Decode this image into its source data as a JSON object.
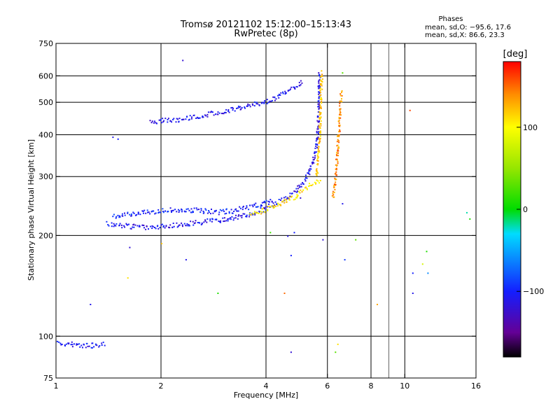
{
  "chart_data": {
    "type": "scatter",
    "title": "Tromsø 20121102 15:12:00–15:13:43",
    "subtitle": "RwPretec (8p)",
    "phases_header": "Phases",
    "phases_O": "mean, sd,O: −95.6, 17.6",
    "phases_X": "mean, sd,X:  86.6, 23.3",
    "xlabel": "Frequency [MHz]",
    "ylabel": "Stationary phase Virtual Height [km]",
    "x_scale": "log",
    "y_scale": "log",
    "xlim": [
      1,
      16
    ],
    "ylim": [
      75,
      750
    ],
    "x_ticks": [
      1,
      2,
      4,
      6,
      8,
      10,
      16
    ],
    "x_tick_labels": [
      "1",
      "2",
      "4",
      "6",
      "8",
      "10",
      "16"
    ],
    "x_grid": [
      2,
      4,
      6,
      8,
      10
    ],
    "x_minor_grid": [
      9
    ],
    "y_ticks": [
      75,
      100,
      200,
      300,
      400,
      500,
      600,
      750
    ],
    "y_tick_labels": [
      "75",
      "100",
      "200",
      "300",
      "400",
      "500",
      "600",
      "750"
    ],
    "y_grid": [
      100,
      200,
      300,
      400,
      500,
      600
    ],
    "grid": true,
    "colorbar": {
      "label": "[deg]",
      "range": [
        -180,
        180
      ],
      "ticks": [
        100,
        0,
        -100
      ],
      "tick_labels": [
        "100",
        "0",
        "−100"
      ],
      "colormap": "rainbow"
    },
    "traces": [
      {
        "name": "",
        "phase": -105,
        "points": [
          [
            1.0,
            96
          ],
          [
            1.05,
            95.5
          ],
          [
            1.1,
            95
          ],
          [
            1.15,
            94.5
          ],
          [
            1.2,
            94.2
          ],
          [
            1.25,
            94
          ],
          [
            1.3,
            94.3
          ],
          [
            1.35,
            94.8
          ],
          [
            1.38,
            95
          ]
        ]
      },
      {
        "name": "",
        "phase": -110,
        "points": [
          [
            1.4,
            218
          ],
          [
            1.45,
            217
          ],
          [
            1.5,
            216
          ],
          [
            1.6,
            214
          ],
          [
            1.7,
            213
          ],
          [
            1.8,
            213
          ],
          [
            2.0,
            214
          ],
          [
            2.2,
            216
          ],
          [
            2.5,
            219
          ],
          [
            2.8,
            222
          ],
          [
            3.0,
            224
          ],
          [
            3.3,
            228
          ],
          [
            3.6,
            233
          ],
          [
            3.9,
            240
          ],
          [
            4.2,
            248
          ],
          [
            4.5,
            258
          ],
          [
            4.8,
            270
          ],
          [
            5.0,
            283
          ],
          [
            5.2,
            300
          ],
          [
            5.4,
            325
          ],
          [
            5.5,
            350
          ],
          [
            5.58,
            380
          ],
          [
            5.62,
            420
          ],
          [
            5.64,
            470
          ],
          [
            5.65,
            520
          ],
          [
            5.66,
            570
          ],
          [
            5.68,
            620
          ]
        ]
      },
      {
        "name": "",
        "phase": -100,
        "points": [
          [
            1.45,
            228
          ],
          [
            1.6,
            232
          ],
          [
            1.8,
            236
          ],
          [
            2.0,
            238
          ],
          [
            2.3,
            240
          ],
          [
            2.6,
            238
          ],
          [
            2.9,
            236
          ],
          [
            3.2,
            238
          ],
          [
            3.5,
            243
          ],
          [
            3.9,
            250
          ],
          [
            4.2,
            257
          ]
        ]
      },
      {
        "name": "",
        "phase": -110,
        "points": [
          [
            1.85,
            440
          ],
          [
            2.0,
            442
          ],
          [
            2.2,
            445
          ],
          [
            2.5,
            455
          ],
          [
            2.8,
            465
          ],
          [
            3.1,
            475
          ],
          [
            3.4,
            485
          ],
          [
            3.7,
            495
          ],
          [
            4.0,
            505
          ],
          [
            4.3,
            520
          ],
          [
            4.6,
            545
          ],
          [
            4.9,
            565
          ],
          [
            5.1,
            580
          ]
        ]
      },
      {
        "name": "",
        "phase": 110,
        "points": [
          [
            3.6,
            232
          ],
          [
            3.9,
            238
          ],
          [
            4.2,
            245
          ],
          [
            4.5,
            253
          ],
          [
            4.8,
            262
          ],
          [
            5.0,
            270
          ],
          [
            5.2,
            278
          ],
          [
            5.4,
            285
          ],
          [
            5.6,
            290
          ],
          [
            5.7,
            293
          ]
        ]
      },
      {
        "name": "",
        "phase": 120,
        "points": [
          [
            5.55,
            300
          ],
          [
            5.6,
            330
          ],
          [
            5.65,
            370
          ],
          [
            5.68,
            420
          ],
          [
            5.7,
            470
          ],
          [
            5.72,
            520
          ],
          [
            5.74,
            570
          ],
          [
            5.76,
            620
          ]
        ]
      },
      {
        "name": "",
        "phase": 140,
        "points": [
          [
            6.2,
            260
          ],
          [
            6.3,
            290
          ],
          [
            6.35,
            330
          ],
          [
            6.4,
            370
          ],
          [
            6.45,
            420
          ],
          [
            6.5,
            480
          ],
          [
            6.55,
            540
          ]
        ]
      }
    ],
    "outliers": [
      [
        2.3,
        670,
        -120
      ],
      [
        6.6,
        615,
        30
      ],
      [
        1.45,
        395,
        -110
      ],
      [
        1.5,
        390,
        -100
      ],
      [
        1.62,
        185,
        -120
      ],
      [
        1.6,
        150,
        110
      ],
      [
        2.0,
        190,
        120
      ],
      [
        2.35,
        170,
        -110
      ],
      [
        1.25,
        125,
        -110
      ],
      [
        2.9,
        135,
        10
      ],
      [
        4.1,
        205,
        20
      ],
      [
        4.6,
        200,
        -110
      ],
      [
        4.7,
        175,
        -100
      ],
      [
        4.5,
        135,
        150
      ],
      [
        4.7,
        90,
        -120
      ],
      [
        6.4,
        95,
        110
      ],
      [
        6.3,
        90,
        30
      ],
      [
        6.7,
        170,
        -90
      ],
      [
        7.2,
        195,
        30
      ],
      [
        8.3,
        125,
        130
      ],
      [
        10.3,
        475,
        160
      ],
      [
        10.5,
        155,
        -100
      ],
      [
        11.5,
        180,
        10
      ],
      [
        11.2,
        165,
        80
      ],
      [
        11.6,
        155,
        -60
      ],
      [
        10.5,
        135,
        -110
      ],
      [
        15.3,
        225,
        10
      ],
      [
        15.0,
        235,
        -20
      ],
      [
        6.6,
        250,
        -110
      ],
      [
        5.0,
        260,
        -120
      ],
      [
        4.8,
        205,
        -100
      ],
      [
        5.8,
        195,
        -120
      ]
    ]
  }
}
